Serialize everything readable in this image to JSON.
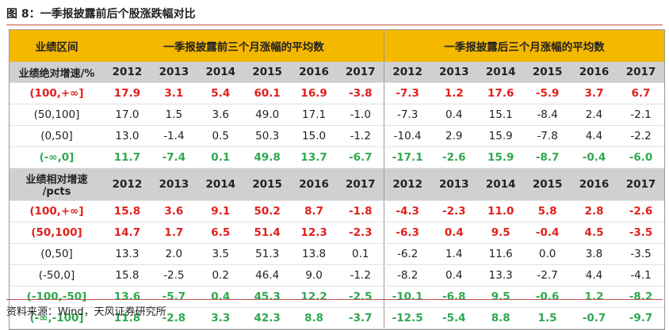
{
  "figure_title": "图 8：一季报披露前后个股涨跌幅对比",
  "header": {
    "col_label": "业绩区间",
    "before_label": "一季报披露前三个月涨幅的平均数",
    "after_label": "一季报披露后三个月涨幅的平均数"
  },
  "section1": {
    "label": "业绩绝对增速/%",
    "years": [
      "2012",
      "2013",
      "2014",
      "2015",
      "2016",
      "2017",
      "2012",
      "2013",
      "2014",
      "2015",
      "2016",
      "2017"
    ],
    "rows": [
      {
        "label": "(100,+∞]",
        "style": "red",
        "values": [
          "17.9",
          "3.1",
          "5.4",
          "60.1",
          "16.9",
          "-3.8",
          "-7.3",
          "1.2",
          "17.6",
          "-5.9",
          "3.7",
          "6.7"
        ]
      },
      {
        "label": "(50,100]",
        "style": "normal",
        "values": [
          "17.0",
          "1.5",
          "3.6",
          "49.0",
          "17.1",
          "-1.0",
          "-7.3",
          "0.4",
          "15.1",
          "-8.4",
          "2.4",
          "-2.1"
        ]
      },
      {
        "label": "(0,50]",
        "style": "normal",
        "values": [
          "13.0",
          "-1.4",
          "0.5",
          "50.3",
          "15.0",
          "-1.2",
          "-10.4",
          "2.9",
          "15.9",
          "-7.8",
          "4.4",
          "-2.2"
        ]
      },
      {
        "label": "(-∞,0]",
        "style": "green",
        "values": [
          "11.7",
          "-7.4",
          "0.1",
          "49.8",
          "13.7",
          "-6.7",
          "-17.1",
          "-2.6",
          "15.9",
          "-8.7",
          "-0.4",
          "-6.0"
        ]
      }
    ]
  },
  "section2": {
    "label_line1": "业绩相对增速",
    "label_line2": "/pcts",
    "years": [
      "2012",
      "2013",
      "2014",
      "2015",
      "2016",
      "2017",
      "2012",
      "2013",
      "2014",
      "2015",
      "2016",
      "2017"
    ],
    "rows": [
      {
        "label": "(100,+∞]",
        "style": "red",
        "values": [
          "15.8",
          "3.6",
          "9.1",
          "50.2",
          "8.7",
          "-1.8",
          "-4.3",
          "-2.3",
          "11.0",
          "5.8",
          "2.8",
          "-2.6"
        ]
      },
      {
        "label": "(50,100]",
        "style": "red",
        "values": [
          "14.7",
          "1.7",
          "6.5",
          "51.4",
          "12.3",
          "-2.3",
          "-6.3",
          "0.4",
          "9.5",
          "-0.4",
          "4.5",
          "-3.5"
        ]
      },
      {
        "label": "(0,50]",
        "style": "normal",
        "values": [
          "13.3",
          "2.0",
          "3.5",
          "51.3",
          "13.8",
          "0.1",
          "-6.2",
          "1.4",
          "11.6",
          "0.0",
          "3.8",
          "-3.5"
        ]
      },
      {
        "label": "(-50,0]",
        "style": "normal",
        "values": [
          "15.8",
          "-2.5",
          "0.2",
          "46.4",
          "9.0",
          "-1.2",
          "-8.2",
          "0.4",
          "13.3",
          "-2.7",
          "4.4",
          "-4.1"
        ]
      },
      {
        "label": "(-100,-50]",
        "style": "green",
        "values": [
          "13.6",
          "-5.7",
          "0.4",
          "45.3",
          "12.2",
          "-2.5",
          "-10.1",
          "-6.8",
          "9.5",
          "-0.6",
          "1.2",
          "-8.2"
        ]
      },
      {
        "label": "(-∞,-100]",
        "style": "green",
        "values": [
          "11.8",
          "-2.8",
          "3.3",
          "42.3",
          "8.8",
          "-3.7",
          "-12.5",
          "-5.4",
          "8.8",
          "1.5",
          "-0.7",
          "-9.7"
        ]
      }
    ]
  },
  "source": "资料来源：Wind，天风证券研究所",
  "colors": {
    "header_bg": "#f5b800",
    "year_bg": "#d0d0d0",
    "red": "#e0201c",
    "green": "#2fa84f",
    "rule": "#c0504d"
  }
}
